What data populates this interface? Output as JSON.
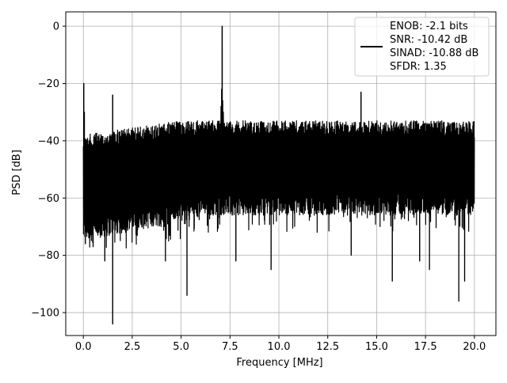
{
  "chart_data": {
    "type": "line",
    "title": "",
    "xlabel": "Frequency [MHz]",
    "ylabel": "PSD [dB]",
    "xlim": [
      -0.9,
      21.1
    ],
    "ylim": [
      -108,
      5
    ],
    "x_ticks": [
      0.0,
      2.5,
      5.0,
      7.5,
      10.0,
      12.5,
      15.0,
      17.5,
      20.0
    ],
    "x_tick_labels": [
      "0.0",
      "2.5",
      "5.0",
      "7.5",
      "10.0",
      "12.5",
      "15.0",
      "17.5",
      "20.0"
    ],
    "y_ticks": [
      0,
      -20,
      -40,
      -60,
      -80,
      -100
    ],
    "y_tick_labels": [
      "0",
      "−20",
      "−40",
      "−60",
      "−80",
      "−100"
    ],
    "grid": true,
    "legend_position": "top-right",
    "legend": {
      "lines": [
        "ENOB: -2.1 bits",
        "SNR: -10.42 dB",
        "SINAD: -10.88 dB",
        "SFDR: 1.35"
      ]
    },
    "series": [
      {
        "color": "#000000",
        "noise_floor": {
          "x_range": [
            0.0,
            20.0
          ],
          "upper_db": [
            -38,
            -33
          ],
          "lower_db": [
            -75,
            -66
          ],
          "typical_dips_db": -70
        },
        "peaks": [
          {
            "x": 0.02,
            "y": -20
          },
          {
            "x": 0.05,
            "y": -30
          },
          {
            "x": 1.5,
            "y": -24
          },
          {
            "x": 7.1,
            "y": 0
          },
          {
            "x": 14.2,
            "y": -23
          }
        ],
        "deep_dips": [
          {
            "x": 0.1,
            "y": -76
          },
          {
            "x": 0.5,
            "y": -77
          },
          {
            "x": 1.1,
            "y": -82
          },
          {
            "x": 1.5,
            "y": -104
          },
          {
            "x": 4.2,
            "y": -82
          },
          {
            "x": 5.3,
            "y": -94
          },
          {
            "x": 7.8,
            "y": -82
          },
          {
            "x": 9.6,
            "y": -85
          },
          {
            "x": 13.7,
            "y": -80
          },
          {
            "x": 15.8,
            "y": -89
          },
          {
            "x": 17.2,
            "y": -82
          },
          {
            "x": 17.7,
            "y": -85
          },
          {
            "x": 19.2,
            "y": -96
          },
          {
            "x": 19.5,
            "y": -89
          }
        ]
      }
    ]
  }
}
